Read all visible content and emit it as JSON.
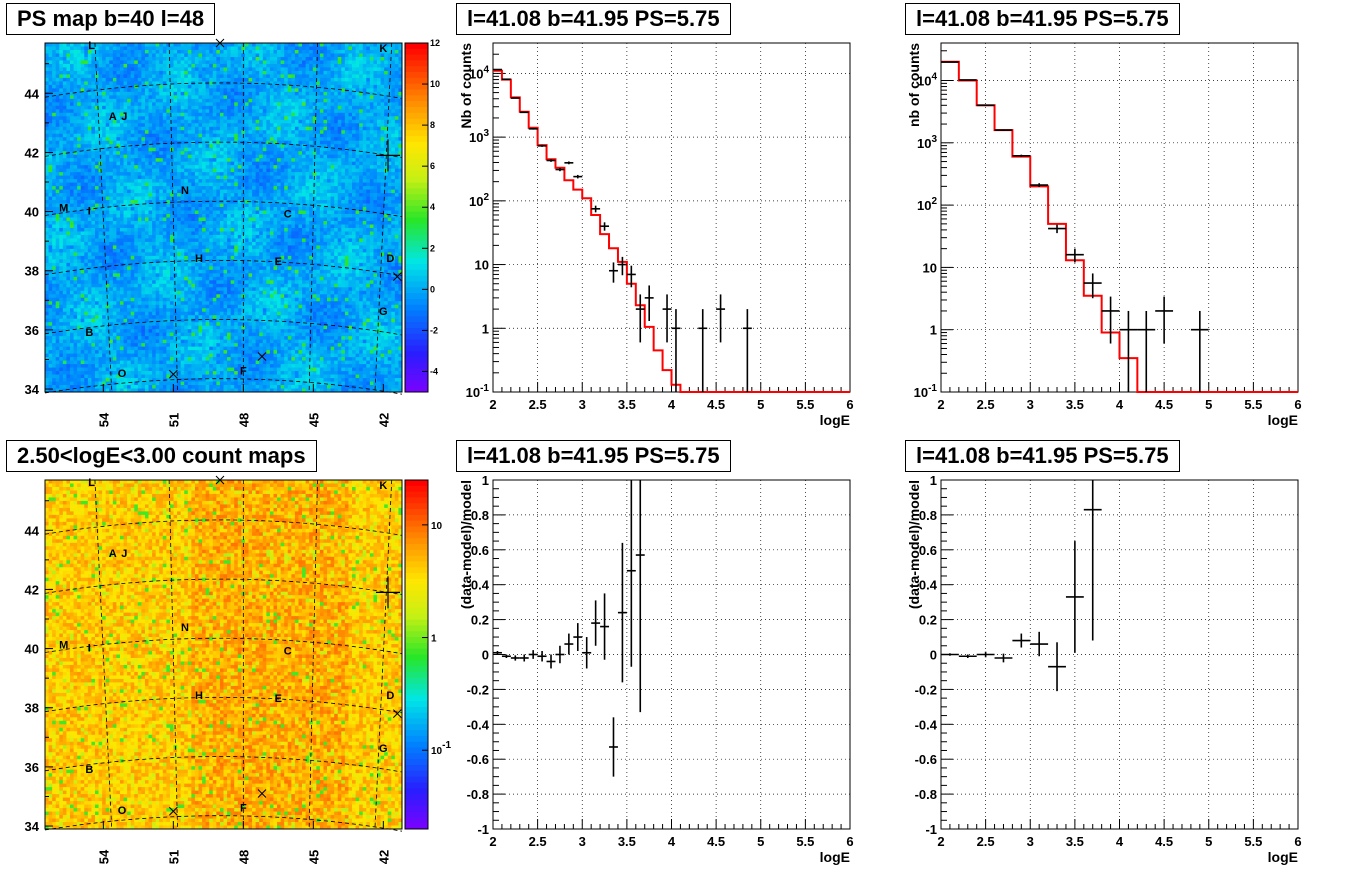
{
  "pad_titles": {
    "ps_map": "PS map b=40 l=48",
    "spec1": "l=41.08 b=41.95 PS=5.75",
    "spec2": "l=41.08 b=41.95 PS=5.75",
    "count_map": "2.50<logE<3.00 count maps",
    "res1": "l=41.08 b=41.95 PS=5.75",
    "res2": "l=41.08 b=41.95 PS=5.75"
  },
  "colors": {
    "model_line": "#ff0000",
    "data_points": "#000000",
    "grid": "#000000"
  },
  "chart_data": [
    {
      "id": "ps_map",
      "type": "heatmap",
      "title": "PS map b=40 l=48",
      "colormap": "ROOT rainbow",
      "color_scale": "linear",
      "z_range": [
        -5,
        12
      ],
      "colorbar_ticks": [
        "12",
        "10",
        "8",
        "6",
        "4",
        "2",
        "0",
        "-2",
        "-4"
      ],
      "x_ticks": [
        "54",
        "51",
        "48",
        "45",
        "42"
      ],
      "y_ticks": [
        "44",
        "42",
        "40",
        "38",
        "36",
        "34"
      ],
      "x_range_deg": [
        56.5,
        41.2
      ],
      "y_range_deg": [
        33.9,
        45.7
      ],
      "dominant_level": 1,
      "source_labels": [
        {
          "label": "L",
          "l": 54.5,
          "b": 45.5
        },
        {
          "label": "K",
          "l": 42.0,
          "b": 45.4
        },
        {
          "label": "A",
          "l": 53.6,
          "b": 43.1
        },
        {
          "label": "J",
          "l": 53.1,
          "b": 43.1
        },
        {
          "label": "N",
          "l": 50.5,
          "b": 40.6
        },
        {
          "label": "M",
          "l": 55.7,
          "b": 40.0
        },
        {
          "label": "I",
          "l": 54.6,
          "b": 39.9
        },
        {
          "label": "C",
          "l": 46.1,
          "b": 39.8
        },
        {
          "label": "H",
          "l": 49.9,
          "b": 38.3
        },
        {
          "label": "E",
          "l": 46.5,
          "b": 38.2
        },
        {
          "label": "D",
          "l": 41.7,
          "b": 38.3
        },
        {
          "label": "G",
          "l": 42.0,
          "b": 36.5
        },
        {
          "label": "B",
          "l": 54.6,
          "b": 35.8
        },
        {
          "label": "O",
          "l": 53.2,
          "b": 34.4
        },
        {
          "label": "F",
          "l": 48.0,
          "b": 34.5
        }
      ]
    },
    {
      "id": "spec1",
      "type": "line",
      "title": "l=41.08 b=41.95 PS=5.75",
      "xlabel": "logE",
      "ylabel": "Nb of counts",
      "xlim": [
        2,
        6
      ],
      "ylim": [
        0.1,
        30000
      ],
      "y_scale": "log",
      "x_ticks": [
        "2",
        "2.5",
        "3",
        "3.5",
        "4",
        "4.5",
        "5",
        "5.5",
        "6"
      ],
      "y_ticks": [
        "10^-1",
        "1",
        "10",
        "10^2",
        "10^3",
        "10^4"
      ],
      "grid": true,
      "bin_width": 0.1,
      "series": [
        {
          "kind": "step",
          "bin_edges": [
            2.0,
            2.1,
            2.2,
            2.3,
            2.4,
            2.5,
            2.6,
            2.7,
            2.8,
            2.9,
            3.0,
            3.1,
            3.2,
            3.3,
            3.4,
            3.5,
            3.6,
            3.7,
            3.8,
            3.9,
            4.0,
            4.1,
            4.2,
            6.0
          ],
          "values": [
            11000,
            8000,
            4200,
            2500,
            1400,
            750,
            450,
            330,
            210,
            150,
            110,
            60,
            30,
            18,
            11,
            5,
            2.3,
            1.05,
            0.45,
            0.22,
            0.13,
            0.1,
            0.1
          ]
        },
        {
          "kind": "errorbar",
          "x": [
            2.05,
            2.15,
            2.25,
            2.35,
            2.45,
            2.55,
            2.65,
            2.75,
            2.85,
            2.95,
            3.15,
            3.25,
            3.35,
            3.45,
            3.55,
            3.65,
            3.75,
            3.95,
            4.05,
            4.35,
            4.55,
            4.85
          ],
          "y": [
            11500,
            8100,
            4100,
            2450,
            1350,
            730,
            430,
            310,
            395,
            240,
            75,
            40,
            8,
            10,
            7,
            2,
            3,
            2,
            1,
            1,
            2,
            1
          ],
          "y_err": [
            107,
            90,
            64,
            49,
            37,
            27,
            21,
            18,
            20,
            15,
            9,
            6,
            2.8,
            3.2,
            2.6,
            1.4,
            1.7,
            1.4,
            1,
            1,
            1.4,
            1
          ]
        }
      ]
    },
    {
      "id": "spec2",
      "type": "line",
      "title": "l=41.08 b=41.95 PS=5.75",
      "xlabel": "logE",
      "ylabel": "nb of counts",
      "xlim": [
        2,
        6
      ],
      "ylim": [
        0.1,
        40000
      ],
      "y_scale": "log",
      "x_ticks": [
        "2",
        "2.5",
        "3",
        "3.5",
        "4",
        "4.5",
        "5",
        "5.5",
        "6"
      ],
      "y_ticks": [
        "10^-1",
        "1",
        "10",
        "10^2",
        "10^3",
        "10^4"
      ],
      "grid": true,
      "bin_width": 0.2,
      "series": [
        {
          "kind": "step",
          "bin_edges": [
            2.0,
            2.2,
            2.4,
            2.6,
            2.8,
            3.0,
            3.2,
            3.4,
            3.6,
            3.8,
            4.0,
            4.2,
            6.0
          ],
          "values": [
            20000,
            10000,
            4000,
            1600,
            600,
            200,
            50,
            13,
            3.5,
            0.9,
            0.35,
            0.1
          ]
        },
        {
          "kind": "errorbar",
          "x": [
            2.1,
            2.3,
            2.5,
            2.7,
            2.9,
            3.1,
            3.3,
            3.5,
            3.7,
            3.9,
            4.1,
            4.3,
            4.5,
            4.9
          ],
          "y": [
            19800,
            10200,
            4000,
            1600,
            620,
            210,
            42,
            16,
            5.6,
            2,
            1,
            1,
            2,
            1
          ],
          "y_err": [
            141,
            101,
            63,
            40,
            25,
            14.5,
            6.5,
            4,
            2.4,
            1.4,
            1,
            1,
            1.4,
            1
          ]
        }
      ]
    },
    {
      "id": "count_map",
      "type": "heatmap",
      "title": "2.50<logE<3.00 count maps",
      "colormap": "ROOT rainbow",
      "color_scale": "log",
      "z_range": [
        0.02,
        25
      ],
      "colorbar_ticks": [
        "10",
        "1",
        "10^-1"
      ],
      "x_ticks": [
        "54",
        "51",
        "48",
        "45",
        "42"
      ],
      "y_ticks": [
        "44",
        "42",
        "40",
        "38",
        "36",
        "34"
      ],
      "x_range_deg": [
        56.5,
        41.2
      ],
      "y_range_deg": [
        33.9,
        45.7
      ],
      "dominant_level": 6,
      "source_labels": [
        {
          "label": "L",
          "l": 54.5,
          "b": 45.5
        },
        {
          "label": "K",
          "l": 42.0,
          "b": 45.4
        },
        {
          "label": "A",
          "l": 53.6,
          "b": 43.1
        },
        {
          "label": "J",
          "l": 53.1,
          "b": 43.1
        },
        {
          "label": "N",
          "l": 50.5,
          "b": 40.6
        },
        {
          "label": "M",
          "l": 55.7,
          "b": 40.0
        },
        {
          "label": "I",
          "l": 54.6,
          "b": 39.9
        },
        {
          "label": "C",
          "l": 46.1,
          "b": 39.8
        },
        {
          "label": "H",
          "l": 49.9,
          "b": 38.3
        },
        {
          "label": "E",
          "l": 46.5,
          "b": 38.2
        },
        {
          "label": "D",
          "l": 41.7,
          "b": 38.3
        },
        {
          "label": "G",
          "l": 42.0,
          "b": 36.5
        },
        {
          "label": "B",
          "l": 54.6,
          "b": 35.8
        },
        {
          "label": "O",
          "l": 53.2,
          "b": 34.4
        },
        {
          "label": "F",
          "l": 48.0,
          "b": 34.5
        }
      ]
    },
    {
      "id": "res1",
      "type": "scatter",
      "title": "l=41.08 b=41.95 PS=5.75",
      "xlabel": "logE",
      "ylabel": "(data-model)/model",
      "xlim": [
        2,
        6
      ],
      "ylim": [
        -1,
        1
      ],
      "x_ticks": [
        "2",
        "2.5",
        "3",
        "3.5",
        "4",
        "4.5",
        "5",
        "5.5",
        "6"
      ],
      "y_ticks": [
        "-1",
        "-0.8",
        "-0.6",
        "-0.4",
        "-0.2",
        "0",
        "0.2",
        "0.4",
        "0.6",
        "0.8",
        "1"
      ],
      "grid": true,
      "bin_width": 0.1,
      "series": [
        {
          "kind": "errorbar",
          "x": [
            2.05,
            2.15,
            2.25,
            2.35,
            2.45,
            2.55,
            2.65,
            2.75,
            2.85,
            2.95,
            3.05,
            3.15,
            3.25,
            3.35,
            3.45,
            3.55,
            3.65
          ],
          "y": [
            0.01,
            -0.01,
            -0.02,
            -0.02,
            0.0,
            -0.01,
            -0.04,
            0.0,
            0.06,
            0.1,
            0.01,
            0.18,
            0.16,
            -0.53,
            0.24,
            0.48,
            0.57
          ],
          "y_err": [
            0.01,
            0.01,
            0.015,
            0.02,
            0.025,
            0.03,
            0.04,
            0.05,
            0.06,
            0.08,
            0.09,
            0.13,
            0.19,
            0.17,
            0.4,
            0.55,
            0.9
          ]
        }
      ]
    },
    {
      "id": "res2",
      "type": "scatter",
      "title": "l=41.08 b=41.95 PS=5.75",
      "xlabel": "logE",
      "ylabel": "(data-model)/model",
      "xlim": [
        2,
        6
      ],
      "ylim": [
        -1,
        1
      ],
      "x_ticks": [
        "2",
        "2.5",
        "3",
        "3.5",
        "4",
        "4.5",
        "5",
        "5.5",
        "6"
      ],
      "y_ticks": [
        "-1",
        "-0.8",
        "-0.6",
        "-0.4",
        "-0.2",
        "0",
        "0.2",
        "0.4",
        "0.6",
        "0.8",
        "1"
      ],
      "grid": true,
      "bin_width": 0.2,
      "series": [
        {
          "kind": "errorbar",
          "x": [
            2.1,
            2.3,
            2.5,
            2.7,
            2.9,
            3.1,
            3.3,
            3.5,
            3.7
          ],
          "y": [
            0.0,
            -0.01,
            0.0,
            -0.02,
            0.08,
            0.06,
            -0.07,
            0.33,
            0.83
          ],
          "y_err": [
            0.007,
            0.01,
            0.016,
            0.025,
            0.04,
            0.07,
            0.14,
            0.32,
            0.75
          ]
        }
      ]
    }
  ]
}
